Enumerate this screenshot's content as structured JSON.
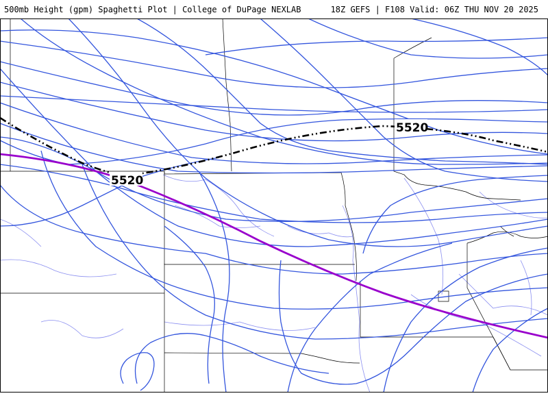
{
  "header": {
    "title": "500mb Height (gpm) Spaghetti Plot | College of DuPage NEXLAB",
    "run_info": "18Z GEFS | F108 Valid: 06Z THU NOV 20 2025"
  },
  "map": {
    "contour_level_label": "5520",
    "contour_labels": [
      "5520",
      "5520"
    ],
    "colors": {
      "ensemble_members": "#3355dd",
      "mean": "#000000",
      "climatology": "#9900cc",
      "political_borders": "#000000",
      "rivers": "#8888ee"
    }
  }
}
